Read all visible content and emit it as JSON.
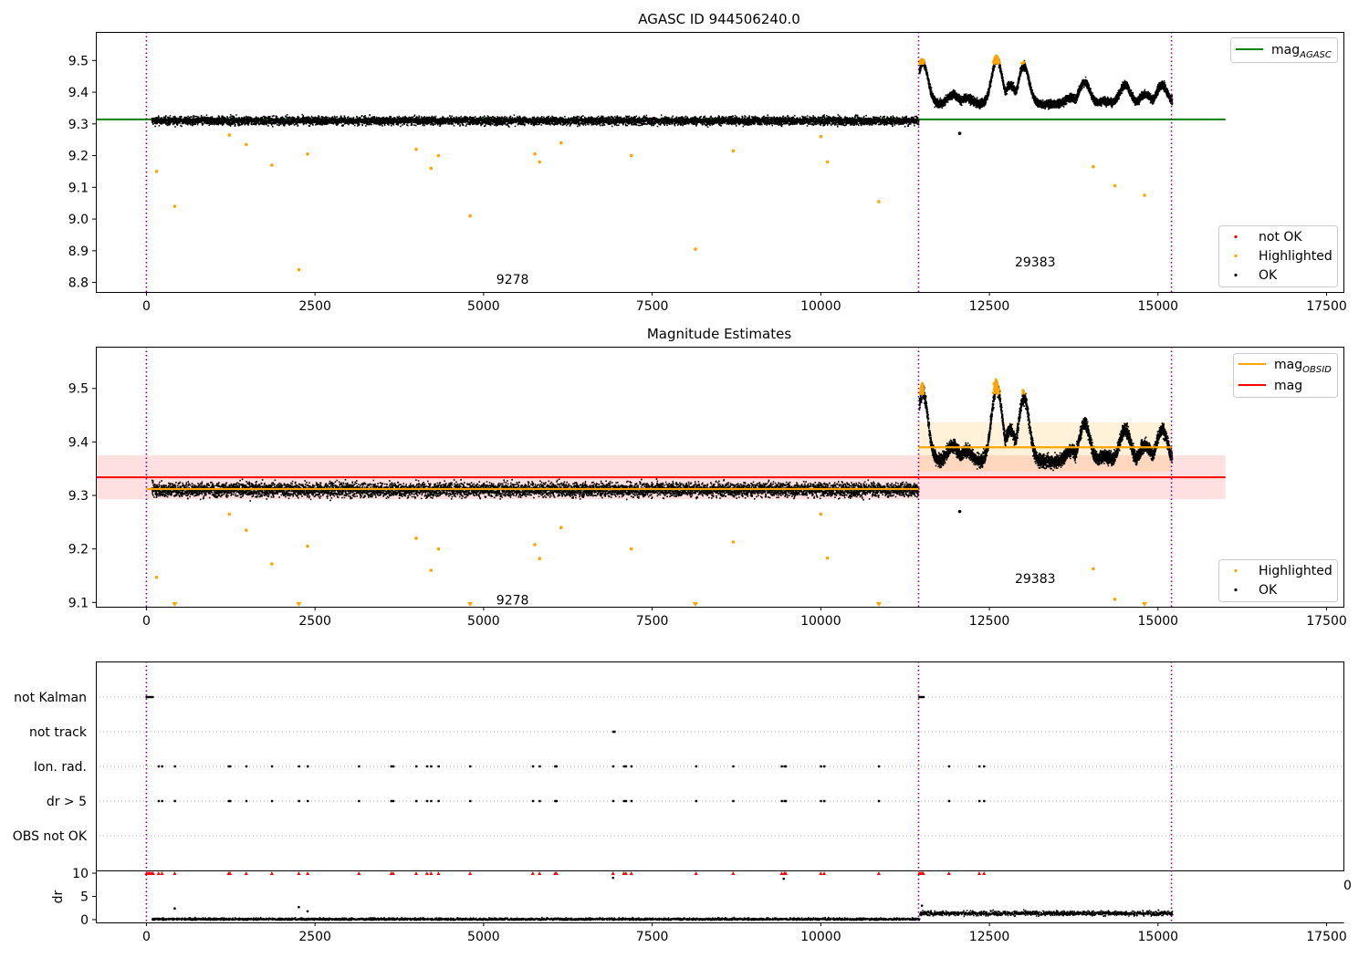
{
  "chart_data": [
    {
      "type": "scatter",
      "title": "AGASC ID 944506240.0",
      "xlim": [
        -750,
        17750
      ],
      "ylim": [
        8.77,
        9.59
      ],
      "x_ticks": [
        0,
        2500,
        5000,
        7500,
        10000,
        12500,
        15000,
        17500
      ],
      "y_ticks": [
        8.8,
        8.9,
        9.0,
        9.1,
        9.2,
        9.3,
        9.4,
        9.5
      ],
      "grid": false,
      "obsid_boundaries": [
        0,
        11450,
        15200
      ],
      "obsid_labels": [
        {
          "text": "9278",
          "x": 5700,
          "y": 8.81
        },
        {
          "text": "29383",
          "x": 13450,
          "y": 8.865
        }
      ],
      "lines": [
        {
          "name_main": "mag",
          "name_sub": "AGASC",
          "color": "#008000",
          "y": 9.314,
          "x_range": [
            -750,
            16000
          ]
        }
      ],
      "obs_segments": [
        {
          "x_range": [
            70,
            11440
          ],
          "base": 9.312,
          "spread": 0.013,
          "kind": "flat"
        },
        {
          "x_range": [
            11450,
            15200
          ],
          "base": 9.37,
          "kind": "variable",
          "peaks": [
            {
              "x": 11500,
              "y": 9.5
            },
            {
              "x": 11950,
              "y": 9.4
            },
            {
              "x": 12150,
              "y": 9.39
            },
            {
              "x": 12600,
              "y": 9.51
            },
            {
              "x": 12800,
              "y": 9.43
            },
            {
              "x": 13000,
              "y": 9.49
            },
            {
              "x": 13300,
              "y": 9.37
            },
            {
              "x": 13700,
              "y": 9.39
            },
            {
              "x": 13900,
              "y": 9.44
            },
            {
              "x": 14200,
              "y": 9.38
            },
            {
              "x": 14500,
              "y": 9.43
            },
            {
              "x": 14800,
              "y": 9.4
            },
            {
              "x": 15050,
              "y": 9.43
            }
          ]
        }
      ],
      "highlighted_outliers": [
        {
          "x": 420,
          "y": 9.04
        },
        {
          "x": 150,
          "y": 9.15
        },
        {
          "x": 1230,
          "y": 9.265
        },
        {
          "x": 1480,
          "y": 9.235
        },
        {
          "x": 1860,
          "y": 9.17
        },
        {
          "x": 2260,
          "y": 8.84
        },
        {
          "x": 2390,
          "y": 9.205
        },
        {
          "x": 4000,
          "y": 9.22
        },
        {
          "x": 4220,
          "y": 9.16
        },
        {
          "x": 4330,
          "y": 9.2
        },
        {
          "x": 4800,
          "y": 9.01
        },
        {
          "x": 5760,
          "y": 9.205
        },
        {
          "x": 5830,
          "y": 9.18
        },
        {
          "x": 6150,
          "y": 9.24
        },
        {
          "x": 7190,
          "y": 9.2
        },
        {
          "x": 8140,
          "y": 8.905
        },
        {
          "x": 8700,
          "y": 9.215
        },
        {
          "x": 10000,
          "y": 9.26
        },
        {
          "x": 10100,
          "y": 9.18
        },
        {
          "x": 10860,
          "y": 9.055
        },
        {
          "x": 14040,
          "y": 9.165
        },
        {
          "x": 14360,
          "y": 9.105
        },
        {
          "x": 14800,
          "y": 9.075
        }
      ],
      "ok_outliers": [
        {
          "x": 12060,
          "y": 9.27
        }
      ],
      "legend_top": {
        "placement": "upper right"
      },
      "legend_bottom": {
        "placement": "lower right",
        "entries": [
          {
            "label": "not OK",
            "color": "#ff0000"
          },
          {
            "label": "Highlighted",
            "color": "#ffa500"
          },
          {
            "label": "OK",
            "color": "#000000"
          }
        ]
      }
    },
    {
      "type": "scatter",
      "title": "Magnitude Estimates",
      "xlim": [
        -750,
        17750
      ],
      "ylim": [
        9.092,
        9.578
      ],
      "x_ticks": [
        0,
        2500,
        5000,
        7500,
        10000,
        12500,
        15000,
        17500
      ],
      "y_ticks": [
        9.1,
        9.2,
        9.3,
        9.4,
        9.5
      ],
      "grid": false,
      "obsid_boundaries": [
        0,
        11450,
        15200
      ],
      "obsid_labels": [
        {
          "text": "9278",
          "x": 5700,
          "y": 9.105
        },
        {
          "text": "29383",
          "x": 13450,
          "y": 9.145
        }
      ],
      "lines": [
        {
          "name_main": "mag",
          "name_sub": "OBSID",
          "color": "#ffa500",
          "segments": [
            {
              "x_range": [
                0,
                11450
              ],
              "y": 9.312
            },
            {
              "x_range": [
                11450,
                15200
              ],
              "y": 9.39
            }
          ]
        },
        {
          "name_main": "mag",
          "name_sub": "",
          "color": "#ff0000",
          "y": 9.334,
          "x_range": [
            -750,
            16000
          ]
        }
      ],
      "bands": [
        {
          "color": "#ff0000",
          "opacity": 0.12,
          "x_range": [
            -750,
            16000
          ],
          "y_range": [
            9.293,
            9.375
          ]
        },
        {
          "color": "#ffa500",
          "opacity": 0.15,
          "x_range": [
            11450,
            15200
          ],
          "y_range": [
            9.345,
            9.437
          ]
        }
      ],
      "obs_segments": [
        {
          "x_range": [
            70,
            11440
          ],
          "base": 9.312,
          "spread": 0.013,
          "kind": "flat"
        },
        {
          "x_range": [
            11450,
            15200
          ],
          "base": 9.37,
          "kind": "variable",
          "peaks": [
            {
              "x": 11500,
              "y": 9.5
            },
            {
              "x": 11950,
              "y": 9.4
            },
            {
              "x": 12150,
              "y": 9.39
            },
            {
              "x": 12600,
              "y": 9.51
            },
            {
              "x": 12800,
              "y": 9.43
            },
            {
              "x": 13000,
              "y": 9.49
            },
            {
              "x": 13300,
              "y": 9.37
            },
            {
              "x": 13700,
              "y": 9.39
            },
            {
              "x": 13900,
              "y": 9.44
            },
            {
              "x": 14200,
              "y": 9.38
            },
            {
              "x": 14500,
              "y": 9.43
            },
            {
              "x": 14800,
              "y": 9.4
            },
            {
              "x": 15050,
              "y": 9.43
            }
          ]
        }
      ],
      "highlighted_outliers": [
        {
          "x": 150,
          "y": 9.147
        },
        {
          "x": 1230,
          "y": 9.265
        },
        {
          "x": 1480,
          "y": 9.235
        },
        {
          "x": 1860,
          "y": 9.172
        },
        {
          "x": 2390,
          "y": 9.205
        },
        {
          "x": 4000,
          "y": 9.22
        },
        {
          "x": 4220,
          "y": 9.16
        },
        {
          "x": 4330,
          "y": 9.2
        },
        {
          "x": 5760,
          "y": 9.208
        },
        {
          "x": 5830,
          "y": 9.182
        },
        {
          "x": 6150,
          "y": 9.24
        },
        {
          "x": 7190,
          "y": 9.2
        },
        {
          "x": 8700,
          "y": 9.213
        },
        {
          "x": 10000,
          "y": 9.265
        },
        {
          "x": 10100,
          "y": 9.183
        },
        {
          "x": 14040,
          "y": 9.163
        },
        {
          "x": 14360,
          "y": 9.106
        }
      ],
      "below_range_markers": [
        420,
        2260,
        4800,
        8140,
        10860,
        14800
      ],
      "ok_outliers": [
        {
          "x": 12060,
          "y": 9.27
        }
      ],
      "legend_top": {
        "placement": "upper right"
      },
      "legend_bottom": {
        "placement": "lower right",
        "entries": [
          {
            "label": "Highlighted",
            "color": "#ffa500"
          },
          {
            "label": "OK",
            "color": "#000000"
          }
        ]
      }
    },
    {
      "type": "scatter",
      "title": "",
      "xlim": [
        -750,
        17750
      ],
      "x_ticks": [
        0,
        2500,
        5000,
        7500,
        10000,
        12500,
        15000,
        17500
      ],
      "categories": [
        "not Kalman",
        "not track",
        "Ion. rad.",
        "dr > 5",
        "OBS not OK"
      ],
      "obsid_boundaries": [
        0,
        11450,
        15200
      ],
      "flags": {
        "not Kalman": [
          0,
          30,
          60,
          90,
          11460,
          11490,
          11520
        ],
        "not track": [
          6920,
          6940
        ],
        "Ion. rad.": [
          180,
          230,
          420,
          1220,
          1240,
          1480,
          1860,
          2260,
          2390,
          3150,
          3630,
          3660,
          4000,
          4160,
          4220,
          4330,
          4800,
          5730,
          5830,
          6060,
          6080,
          6920,
          7080,
          7110,
          7190,
          8150,
          8700,
          9420,
          9460,
          9480,
          10000,
          10050,
          10860,
          11900,
          12350,
          12420
        ],
        "dr > 5": [
          180,
          230,
          420,
          1220,
          1240,
          1480,
          1860,
          2260,
          2390,
          3150,
          3630,
          3660,
          4000,
          4160,
          4220,
          4330,
          4800,
          5730,
          5830,
          6060,
          6080,
          6920,
          7080,
          7110,
          7190,
          8150,
          8700,
          9420,
          9460,
          9480,
          10000,
          10050,
          10860,
          11900,
          12350,
          12420
        ],
        "OBS not OK": []
      },
      "dr": {
        "ylim": [
          -0.6,
          10.6
        ],
        "y_ticks": [
          0,
          5,
          10
        ],
        "ylabel": "dr",
        "clip_value": 10,
        "segments": [
          {
            "x_range": [
              70,
              11440
            ],
            "base": 0.25,
            "spread": 0.25
          },
          {
            "x_range": [
              11450,
              15200
            ],
            "base": 1.5,
            "spread": 0.5
          }
        ],
        "clipped_x": [
          0,
          20,
          40,
          60,
          80,
          100,
          180,
          230,
          420,
          1220,
          1240,
          1480,
          1860,
          2260,
          2390,
          3150,
          3630,
          3660,
          4000,
          4160,
          4220,
          4330,
          4800,
          5730,
          5830,
          6060,
          6080,
          6920,
          7080,
          7110,
          7190,
          8150,
          8700,
          9420,
          9460,
          9480,
          10000,
          10050,
          10860,
          11460,
          11480,
          11500,
          11520,
          11900,
          12350,
          12420
        ],
        "outliers": [
          {
            "x": 420,
            "y": 2.4
          },
          {
            "x": 2260,
            "y": 2.7
          },
          {
            "x": 2390,
            "y": 1.8
          },
          {
            "x": 6920,
            "y": 9.0
          },
          {
            "x": 9450,
            "y": 8.8
          },
          {
            "x": 11500,
            "y": 3.0
          }
        ],
        "cut_label": "0"
      }
    }
  ]
}
